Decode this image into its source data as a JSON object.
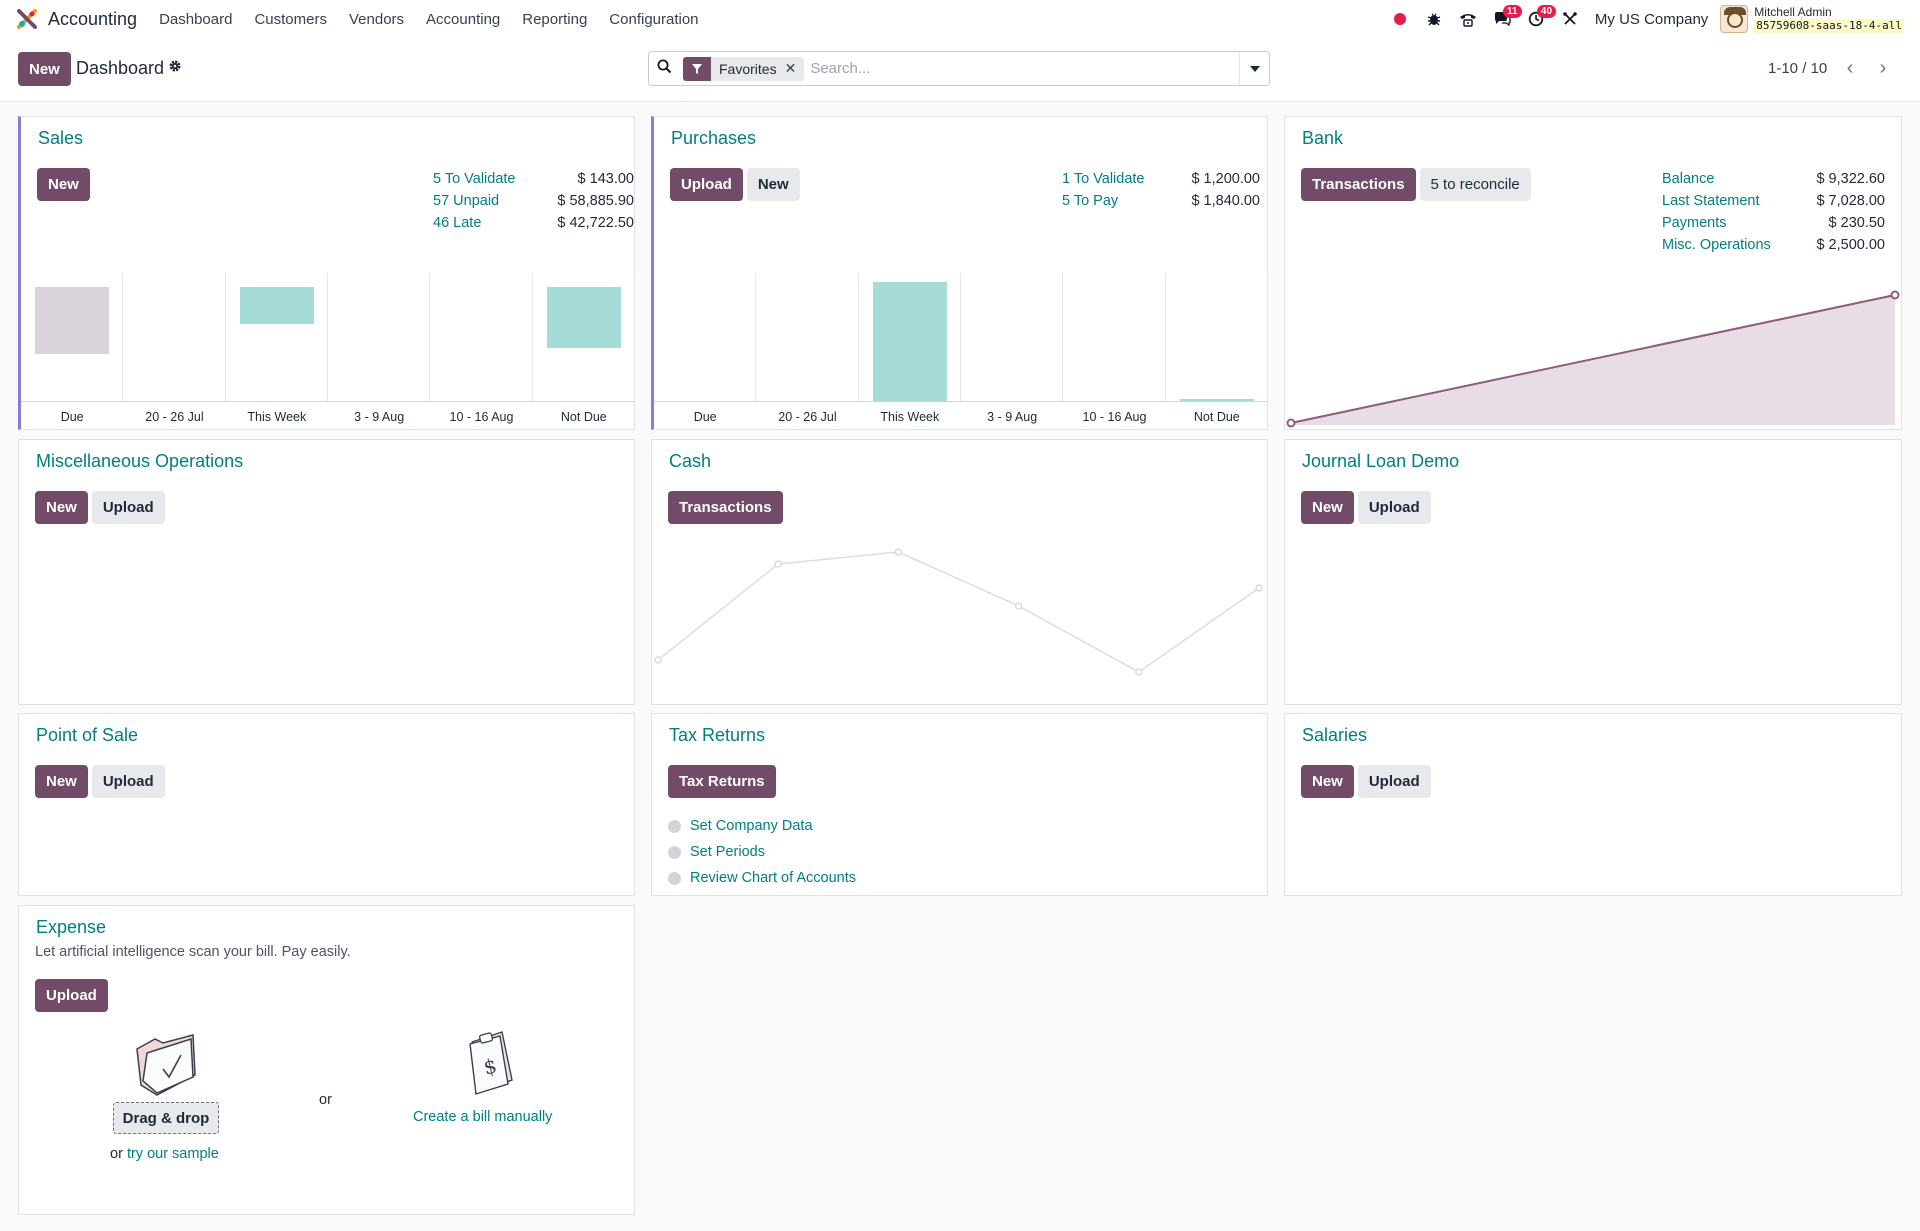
{
  "topnav": {
    "app_name": "Accounting",
    "menus": [
      "Dashboard",
      "Customers",
      "Vendors",
      "Accounting",
      "Reporting",
      "Configuration"
    ],
    "messages_badge": "11",
    "activities_badge": "40",
    "company": "My US Company",
    "user_name": "Mitchell Admin",
    "db_name": "85759608-saas-18-4-all"
  },
  "control": {
    "new_label": "New",
    "title": "Dashboard",
    "facet_label": "Favorites",
    "search_placeholder": "Search...",
    "pager": "1-10 / 10"
  },
  "colors": {
    "primary": "#714b67",
    "link": "#017e84",
    "bar_teal": "#a6dcd7",
    "bar_grey": "#d8d3da",
    "bank_line": "#8d5d7f",
    "bank_fill": "#e9dde5"
  },
  "sales": {
    "title": "Sales",
    "new_label": "New",
    "stats": [
      {
        "label": "5 To Validate",
        "amount": "$ 143.00"
      },
      {
        "label": "57 Unpaid",
        "amount": "$ 58,885.90"
      },
      {
        "label": "46 Late",
        "amount": "$ 42,722.50"
      }
    ],
    "chart_data": {
      "type": "bar",
      "categories": [
        "Due",
        "20 - 26 Jul",
        "This Week",
        "3 - 9 Aug",
        "10 - 16 Aug",
        "Not Due"
      ],
      "values": [
        -0.55,
        0,
        -0.3,
        0,
        0,
        -0.5
      ],
      "bar_colors": [
        "#d8d3da",
        "#a6dcd7",
        "#a6dcd7",
        "#a6dcd7",
        "#a6dcd7",
        "#a6dcd7"
      ],
      "ylim": [
        -1.05,
        0
      ]
    }
  },
  "purchases": {
    "title": "Purchases",
    "upload_label": "Upload",
    "new_label": "New",
    "stats": [
      {
        "label": "1 To Validate",
        "amount": "$ 1,200.00"
      },
      {
        "label": "5 To Pay",
        "amount": "$ 1,840.00"
      }
    ],
    "chart_data": {
      "type": "bar",
      "categories": [
        "Due",
        "20 - 26 Jul",
        "This Week",
        "3 - 9 Aug",
        "10 - 16 Aug",
        "Not Due"
      ],
      "values": [
        0,
        0,
        1840,
        0,
        0,
        30
      ],
      "bar_colors": [
        "#a6dcd7",
        "#a6dcd7",
        "#a6dcd7",
        "#a6dcd7",
        "#a6dcd7",
        "#a6dcd7"
      ],
      "ylim": [
        0,
        1980
      ]
    }
  },
  "bank": {
    "title": "Bank",
    "transactions_label": "Transactions",
    "reconcile_label": "5 to reconcile",
    "stats": [
      {
        "label": "Balance",
        "amount": "$ 9,322.60"
      },
      {
        "label": "Last Statement",
        "amount": "$ 7,028.00"
      },
      {
        "label": "Payments",
        "amount": "$ 230.50"
      },
      {
        "label": "Misc. Operations",
        "amount": "$ 2,500.00"
      }
    ],
    "chart_data": {
      "type": "area",
      "values": [
        0,
        9322.6
      ],
      "ylim": [
        0,
        9322.6
      ]
    }
  },
  "misc": {
    "title": "Miscellaneous Operations",
    "new_label": "New",
    "upload_label": "Upload"
  },
  "cash": {
    "title": "Cash",
    "transactions_label": "Transactions",
    "chart_data": {
      "type": "line",
      "values": [
        1,
        9,
        10,
        5.5,
        0,
        7
      ],
      "ylim": [
        0,
        10
      ]
    }
  },
  "loan": {
    "title": "Journal Loan Demo",
    "new_label": "New",
    "upload_label": "Upload"
  },
  "pos": {
    "title": "Point of Sale",
    "new_label": "New",
    "upload_label": "Upload"
  },
  "tax": {
    "title": "Tax Returns",
    "button_label": "Tax Returns",
    "steps": [
      "Set Company Data",
      "Set Periods",
      "Review Chart of Accounts"
    ]
  },
  "salaries": {
    "title": "Salaries",
    "new_label": "New",
    "upload_label": "Upload"
  },
  "expense": {
    "title": "Expense",
    "subtitle": "Let artificial intelligence scan your bill. Pay easily.",
    "upload_label": "Upload",
    "drag_label": "Drag & drop",
    "or_word": "or",
    "try_prefix": "or",
    "try_link": "try our sample",
    "manual_link": "Create a bill manually"
  }
}
